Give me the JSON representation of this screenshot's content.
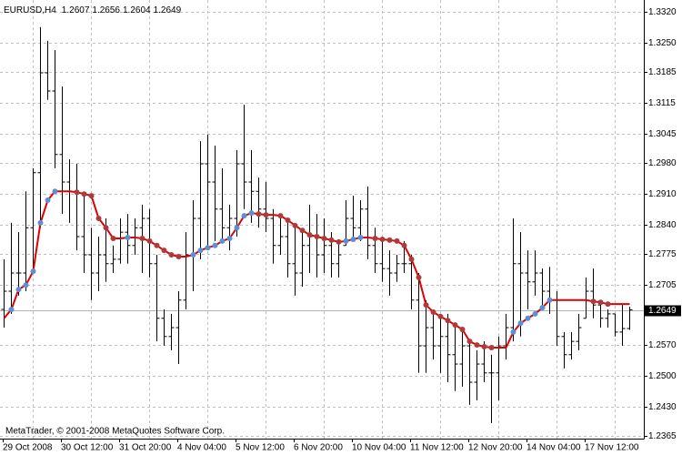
{
  "chart_data": {
    "type": "ohlc",
    "title": "EURUSD,H4",
    "footer": "MetaTrader, © 2001-2008 MetaQuotes Software Corp.",
    "categories": [
      "29 Oct 2008",
      null,
      null,
      null,
      null,
      null,
      null,
      null,
      "30 Oct 12:00",
      null,
      null,
      null,
      null,
      null,
      null,
      null,
      "31 Oct 20:00",
      null,
      null,
      null,
      null,
      null,
      null,
      null,
      "4 Nov 04:00",
      null,
      null,
      null,
      null,
      null,
      null,
      null,
      "5 Nov 12:00",
      null,
      null,
      null,
      null,
      null,
      null,
      null,
      "6 Nov 20:00",
      null,
      null,
      null,
      null,
      null,
      null,
      null,
      "10 Nov 04:00",
      null,
      null,
      null,
      null,
      null,
      null,
      null,
      "11 Nov 12:00",
      null,
      null,
      null,
      null,
      null,
      null,
      null,
      "12 Nov 20:00",
      null,
      null,
      null,
      null,
      null,
      null,
      null,
      "14 Nov 04:00",
      null,
      null,
      null,
      null,
      null,
      null,
      null,
      "17 Nov 12:00",
      null,
      null,
      null,
      null,
      null,
      null
    ],
    "ohlc": {
      "color": "#000000",
      "open": [
        1.265,
        1.2691,
        1.2732,
        1.2732,
        1.2834,
        1.2958,
        1.3183,
        1.3142,
        1.2999,
        1.2937,
        1.2916,
        1.2814,
        1.2773,
        1.2732,
        1.2773,
        1.2753,
        1.2763,
        1.2824,
        1.2794,
        1.2834,
        1.2855,
        1.2753,
        1.263,
        1.2589,
        1.2609,
        1.2671,
        1.2773,
        1.2855,
        1.2978,
        1.2937,
        1.2876,
        1.2834,
        1.2855,
        1.2978,
        1.2937,
        1.2916,
        1.2876,
        1.2855,
        1.2794,
        1.2814,
        1.2753,
        1.2732,
        1.2794,
        1.2814,
        1.2773,
        1.2794,
        1.2753,
        1.2794,
        1.2855,
        1.2834,
        1.2876,
        1.2794,
        1.2753,
        1.2742,
        1.2732,
        1.2753,
        1.2753,
        1.2671,
        1.2568,
        1.2609,
        1.2568,
        1.2589,
        1.2548,
        1.2527,
        1.2568,
        1.2486,
        1.2527,
        1.2507,
        1.2507,
        1.2568,
        1.2609,
        1.2753,
        1.2732,
        1.2712,
        1.2732,
        1.2691,
        1.2671,
        1.2589,
        1.2548,
        1.2578,
        1.263,
        1.2691,
        1.266,
        1.263,
        1.264,
        1.2599,
        1.2607
      ],
      "high": [
        1.2763,
        1.2845,
        1.2824,
        1.2916,
        1.2968,
        1.3286,
        1.3255,
        1.3234,
        1.3152,
        1.2988,
        1.2978,
        1.2906,
        1.2834,
        1.2814,
        1.2855,
        1.2794,
        1.2855,
        1.2865,
        1.2855,
        1.2886,
        1.2876,
        1.2773,
        1.265,
        1.264,
        1.2691,
        1.2824,
        1.2896,
        1.3029,
        1.3044,
        1.3019,
        1.2968,
        1.2886,
        1.3009,
        1.3111,
        1.3009,
        1.2947,
        1.2937,
        1.2876,
        1.2865,
        1.2855,
        1.2834,
        1.2824,
        1.2886,
        1.2865,
        1.2855,
        1.2824,
        1.2804,
        1.2896,
        1.2906,
        1.2896,
        1.2927,
        1.2834,
        1.2804,
        1.2783,
        1.2773,
        1.2804,
        1.2773,
        1.2732,
        1.2671,
        1.264,
        1.263,
        1.264,
        1.2619,
        1.2609,
        1.2578,
        1.2558,
        1.2578,
        1.2548,
        1.2589,
        1.264,
        1.2855,
        1.2824,
        1.2783,
        1.2783,
        1.2742,
        1.2746,
        1.2691,
        1.2599,
        1.2599,
        1.264,
        1.2722,
        1.2742,
        1.2671,
        1.265,
        1.264,
        1.266,
        1.2656
      ],
      "low": [
        1.2609,
        1.264,
        1.2681,
        1.2691,
        1.2732,
        1.2834,
        1.3122,
        1.2968,
        1.2865,
        1.2845,
        1.2783,
        1.2732,
        1.2671,
        1.2691,
        1.2712,
        1.2732,
        1.2753,
        1.2753,
        1.2773,
        1.2732,
        1.2722,
        1.2578,
        1.2568,
        1.2558,
        1.2527,
        1.265,
        1.2691,
        1.2763,
        1.2794,
        1.2804,
        1.2804,
        1.2783,
        1.2814,
        1.2876,
        1.2845,
        1.2834,
        1.2824,
        1.2753,
        1.2773,
        1.2722,
        1.2681,
        1.2701,
        1.2732,
        1.2722,
        1.2732,
        1.2722,
        1.2722,
        1.2794,
        1.2804,
        1.2804,
        1.2763,
        1.2732,
        1.2712,
        1.2681,
        1.2712,
        1.2732,
        1.265,
        1.2507,
        1.2507,
        1.2537,
        1.2507,
        1.2486,
        1.2466,
        1.2476,
        1.2435,
        1.2445,
        1.2486,
        1.2394,
        1.2445,
        1.2537,
        1.2578,
        1.2589,
        1.265,
        1.2681,
        1.265,
        1.264,
        1.2568,
        1.2517,
        1.2537,
        1.2558,
        1.263,
        1.263,
        1.2609,
        1.2609,
        1.2589,
        1.2568,
        1.2604
      ],
      "close": [
        1.2691,
        1.2732,
        1.2732,
        1.2834,
        1.2958,
        1.3183,
        1.3142,
        1.2999,
        1.2937,
        1.2916,
        1.2814,
        1.2773,
        1.2732,
        1.2773,
        1.2753,
        1.2763,
        1.2824,
        1.2794,
        1.2834,
        1.2855,
        1.2753,
        1.263,
        1.2589,
        1.2609,
        1.2671,
        1.2773,
        1.2855,
        1.2978,
        1.2937,
        1.2876,
        1.2834,
        1.2855,
        1.2978,
        1.2937,
        1.2916,
        1.2876,
        1.2855,
        1.2794,
        1.2814,
        1.2753,
        1.2732,
        1.2794,
        1.2814,
        1.2773,
        1.2794,
        1.2753,
        1.2773,
        1.2855,
        1.2834,
        1.2876,
        1.2794,
        1.2753,
        1.2742,
        1.2732,
        1.2753,
        1.2753,
        1.2671,
        1.2568,
        1.2609,
        1.2568,
        1.2589,
        1.2548,
        1.2527,
        1.2568,
        1.2486,
        1.2527,
        1.2507,
        1.2507,
        1.2568,
        1.2609,
        1.2753,
        1.2732,
        1.2712,
        1.2732,
        1.2691,
        1.2671,
        1.2589,
        1.2548,
        1.2578,
        1.2609,
        1.2691,
        1.266,
        1.263,
        1.264,
        1.2599,
        1.2607,
        1.2649
      ]
    },
    "ma": {
      "color": "#e00000",
      "rising_color": "#5b8fd6",
      "falling_color": "#b03a3a",
      "values": [
        1.263,
        1.265,
        1.2695,
        1.2705,
        1.2736,
        1.2845,
        1.2896,
        1.2916,
        1.2916,
        1.2916,
        1.2914,
        1.291,
        1.2906,
        1.2855,
        1.2834,
        1.281,
        1.281,
        1.2812,
        1.2812,
        1.281,
        1.2804,
        1.2794,
        1.2783,
        1.2773,
        1.2769,
        1.2769,
        1.2773,
        1.2783,
        1.2789,
        1.2794,
        1.2804,
        1.281,
        1.2834,
        1.2861,
        1.2867,
        1.2865,
        1.2863,
        1.2863,
        1.2861,
        1.2851,
        1.2839,
        1.2828,
        1.2818,
        1.2814,
        1.281,
        1.2806,
        1.2802,
        1.2804,
        1.2808,
        1.2812,
        1.2812,
        1.281,
        1.2808,
        1.2806,
        1.2804,
        1.2794,
        1.2763,
        1.2722,
        1.266,
        1.2644,
        1.2634,
        1.2625,
        1.2615,
        1.2605,
        1.2578,
        1.257,
        1.2566,
        1.2564,
        1.2564,
        1.2564,
        1.2599,
        1.2619,
        1.263,
        1.264,
        1.2654,
        1.2671,
        1.2671,
        1.2671,
        1.2671,
        1.2671,
        1.2671,
        1.2668,
        1.2666,
        1.2662,
        1.2662,
        1.2662,
        1.2662
      ]
    },
    "ylim": [
      1.2359,
      1.3347
    ],
    "yticks": [
      {
        "value": 1.332,
        "label": "1.3320"
      },
      {
        "value": 1.325,
        "label": "1.3250"
      },
      1.3185,
      1.3115,
      1.3045,
      {
        "value": 1.298,
        "label": "1.2980"
      },
      {
        "value": 1.291,
        "label": "1.2910"
      },
      {
        "value": 1.284,
        "label": "1.2840"
      },
      1.2775,
      1.2705,
      {
        "value": 1.257,
        "label": "1.2570"
      },
      {
        "value": 1.25,
        "label": "1.2500"
      },
      {
        "value": 1.243,
        "label": "1.2430"
      },
      1.2365
    ],
    "grid": true
  }
}
